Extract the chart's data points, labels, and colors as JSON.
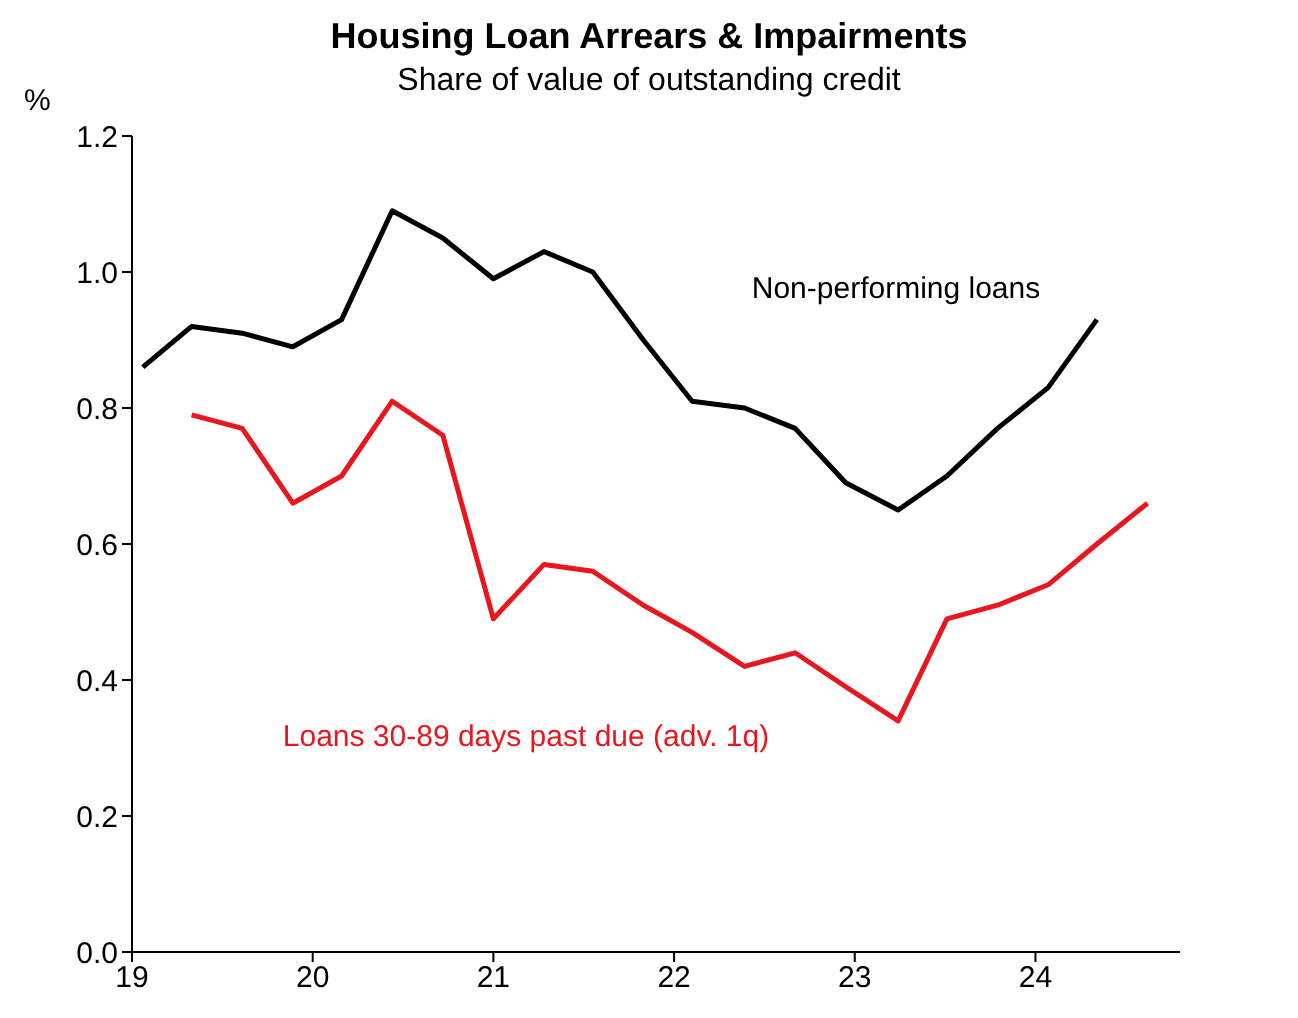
{
  "chart_data": {
    "type": "line",
    "title": "Housing Loan Arrears & Impairments",
    "subtitle": "Share of value of outstanding credit",
    "ylabel": "%",
    "series": [
      {
        "name": "Non-performing loans",
        "color": "#000000",
        "x": [
          19.06,
          19.33,
          19.61,
          19.89,
          20.16,
          20.44,
          20.72,
          21.0,
          21.28,
          21.55,
          21.83,
          22.1,
          22.39,
          22.67,
          22.95,
          23.24,
          23.51,
          23.79,
          24.07,
          24.34
        ],
        "values": [
          0.86,
          0.92,
          0.91,
          0.89,
          0.93,
          1.09,
          1.05,
          0.99,
          1.03,
          1.0,
          0.9,
          0.81,
          0.8,
          0.77,
          0.69,
          0.65,
          0.7,
          0.77,
          0.83,
          0.93
        ]
      },
      {
        "name": "Loans 30-89 days past due (adv. 1q)",
        "color": "#e8171f",
        "x": [
          19.33,
          19.61,
          19.89,
          20.16,
          20.44,
          20.72,
          21.0,
          21.28,
          21.55,
          21.83,
          22.1,
          22.39,
          22.67,
          22.95,
          23.24,
          23.51,
          23.79,
          24.07,
          24.34,
          24.62
        ],
        "values": [
          0.79,
          0.77,
          0.66,
          0.7,
          0.81,
          0.76,
          0.49,
          0.57,
          0.56,
          0.51,
          0.47,
          0.42,
          0.44,
          0.39,
          0.34,
          0.49,
          0.51,
          0.54,
          0.6,
          0.66
        ]
      }
    ],
    "xlim": [
      19,
      24.8
    ],
    "xticks": [
      19,
      20,
      21,
      22,
      23,
      24
    ],
    "ylim": [
      0,
      1.2
    ],
    "yticks": [
      {
        "value": 0,
        "label": "0.0"
      },
      {
        "value": 0.2,
        "label": "0.2"
      },
      {
        "value": 0.4,
        "label": "0.4"
      },
      {
        "value": 0.6,
        "label": "0.6"
      },
      {
        "value": 0.8,
        "label": "0.8"
      },
      {
        "value": 1,
        "label": "1.0"
      },
      {
        "value": 1.2,
        "label": "1.2"
      }
    ],
    "grid": false,
    "legend": false,
    "marker": "none",
    "line_style": "solid"
  }
}
